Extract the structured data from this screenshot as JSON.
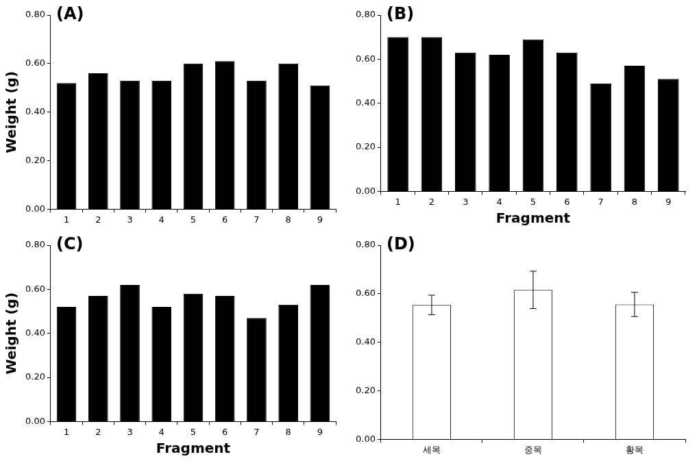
{
  "chart_data": [
    {
      "type": "bar",
      "title": "(A)",
      "ylabel": "Weight (g)",
      "categories": [
        "1",
        "2",
        "3",
        "4",
        "5",
        "6",
        "7",
        "8",
        "9"
      ],
      "values": [
        0.52,
        0.56,
        0.53,
        0.53,
        0.6,
        0.61,
        0.53,
        0.6,
        0.51
      ],
      "color": "#000000",
      "ylim": [
        0,
        0.8
      ],
      "yticks": [
        {
          "value": 0,
          "label": "0.00"
        },
        {
          "value": 0.2,
          "label": "0.20"
        },
        {
          "value": 0.4,
          "label": "0.40"
        },
        {
          "value": 0.6,
          "label": "0.60"
        },
        {
          "value": 0.8,
          "label": "0.80"
        }
      ],
      "grid": false
    },
    {
      "type": "bar",
      "title": "(B)",
      "xlabel": "Fragment",
      "categories": [
        "1",
        "2",
        "3",
        "4",
        "5",
        "6",
        "7",
        "8",
        "9"
      ],
      "values": [
        0.7,
        0.7,
        0.63,
        0.62,
        0.69,
        0.63,
        0.49,
        0.57,
        0.51
      ],
      "color": "#000000",
      "ylim": [
        0,
        0.8
      ],
      "yticks": [
        {
          "value": 0,
          "label": "0.00"
        },
        {
          "value": 0.2,
          "label": "0.20"
        },
        {
          "value": 0.4,
          "label": "0.40"
        },
        {
          "value": 0.6,
          "label": "0.60"
        },
        {
          "value": 0.8,
          "label": "0.80"
        }
      ],
      "grid": false
    },
    {
      "type": "bar",
      "title": "(C)",
      "ylabel": "Weight (g)",
      "xlabel": "Fragment",
      "categories": [
        "1",
        "2",
        "3",
        "4",
        "5",
        "6",
        "7",
        "8",
        "9"
      ],
      "values": [
        0.52,
        0.57,
        0.62,
        0.52,
        0.58,
        0.57,
        0.47,
        0.53,
        0.62
      ],
      "color": "#000000",
      "ylim": [
        0,
        0.8
      ],
      "yticks": [
        {
          "value": 0,
          "label": "0.00"
        },
        {
          "value": 0.2,
          "label": "0.20"
        },
        {
          "value": 0.4,
          "label": "0.40"
        },
        {
          "value": 0.6,
          "label": "0.60"
        },
        {
          "value": 0.8,
          "label": "0.80"
        }
      ],
      "grid": false
    },
    {
      "type": "bar",
      "title": "(D)",
      "categories": [
        "세목",
        "중목",
        "황목"
      ],
      "values": [
        0.554,
        0.616,
        0.556
      ],
      "errors": [
        0.04,
        0.077,
        0.05
      ],
      "color": "#ffffff",
      "ylim": [
        0,
        0.8
      ],
      "yticks": [
        {
          "value": 0,
          "label": "0.00"
        },
        {
          "value": 0.2,
          "label": "0.20"
        },
        {
          "value": 0.4,
          "label": "0.40"
        },
        {
          "value": 0.6,
          "label": "0.60"
        },
        {
          "value": 0.8,
          "label": "0.80"
        }
      ],
      "grid": false
    }
  ]
}
